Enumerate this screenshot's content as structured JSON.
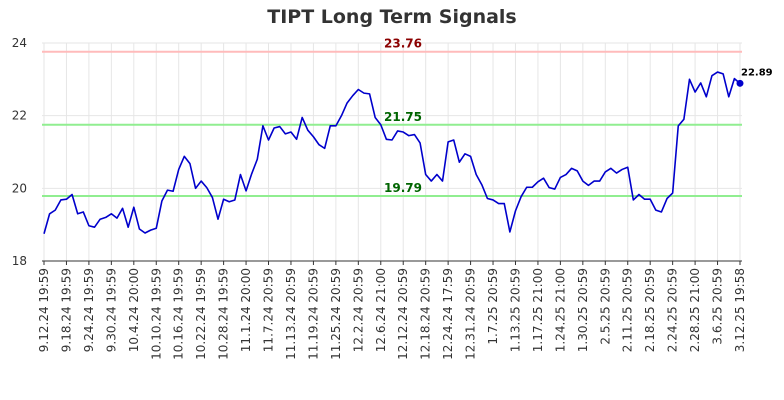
{
  "chart_data": {
    "type": "line",
    "title": "TIPT Long Term Signals",
    "xlabel": "",
    "ylabel": "",
    "ylim": [
      18,
      24
    ],
    "y_ticks": [
      18,
      20,
      22,
      24
    ],
    "x_tick_labels": [
      "9.12.24 19:59",
      "9.18.24 19:59",
      "9.24.24 19:59",
      "9.30.24 19:59",
      "10.4.24 20:00",
      "10.10.24 19:59",
      "10.16.24 19:59",
      "10.22.24 19:59",
      "10.28.24 19:59",
      "11.1.24 20:00",
      "11.7.24 20:59",
      "11.13.24 20:59",
      "11.19.24 20:59",
      "11.25.24 20:59",
      "12.2.24 20:59",
      "12.6.24 21:00",
      "12.12.24 20:59",
      "12.18.24 20:59",
      "12.24.24 17:59",
      "12.31.24 20:59",
      "1.7.25 20:59",
      "1.13.25 20:59",
      "1.17.25 21:00",
      "1.24.25 21:00",
      "1.30.25 20:59",
      "2.5.25 20:59",
      "2.11.25 20:59",
      "2.18.25 20:59",
      "2.24.25 20:59",
      "2.28.25 21:00",
      "3.6.25 20:59",
      "3.12.25 19:58"
    ],
    "grid": true,
    "series": [
      {
        "color": "#0000cc",
        "values": [
          18.75,
          19.3,
          19.4,
          19.68,
          19.7,
          19.83,
          19.3,
          19.35,
          18.97,
          18.93,
          19.15,
          19.2,
          19.3,
          19.18,
          19.45,
          18.93,
          19.48,
          18.88,
          18.77,
          18.85,
          18.9,
          19.65,
          19.95,
          19.92,
          20.52,
          20.88,
          20.68,
          20.0,
          20.2,
          20.02,
          19.75,
          19.15,
          19.7,
          19.63,
          19.68,
          20.38,
          19.93,
          20.4,
          20.8,
          21.72,
          21.33,
          21.66,
          21.7,
          21.5,
          21.55,
          21.35,
          21.95,
          21.6,
          21.42,
          21.2,
          21.1,
          21.72,
          21.72,
          22.0,
          22.35,
          22.55,
          22.72,
          22.62,
          22.6,
          21.95,
          21.75,
          21.35,
          21.33,
          21.58,
          21.55,
          21.45,
          21.48,
          21.25,
          20.38,
          20.2,
          20.38,
          20.2,
          21.28,
          21.33,
          20.72,
          20.95,
          20.88,
          20.38,
          20.1,
          19.72,
          19.68,
          19.58,
          19.58,
          18.8,
          19.38,
          19.77,
          20.03,
          20.03,
          20.18,
          20.28,
          20.02,
          19.98,
          20.3,
          20.38,
          20.55,
          20.48,
          20.2,
          20.08,
          20.2,
          20.2,
          20.45,
          20.55,
          20.42,
          20.52,
          20.58,
          19.68,
          19.83,
          19.7,
          19.7,
          19.4,
          19.35,
          19.72,
          19.87,
          21.72,
          21.9,
          23.0,
          22.65,
          22.9,
          22.52,
          23.1,
          23.2,
          23.15,
          22.52,
          23.02,
          22.89
        ]
      }
    ],
    "horizontal_lines": [
      {
        "value": 23.76,
        "label": "23.76",
        "line_color": "#ffbbbb",
        "text_color": "#8b0000"
      },
      {
        "value": 21.75,
        "label": "21.75",
        "line_color": "#90ee90",
        "text_color": "#006400"
      },
      {
        "value": 19.79,
        "label": "19.79",
        "line_color": "#90ee90",
        "text_color": "#006400"
      }
    ],
    "last_value": 22.89,
    "last_label": "22.89"
  }
}
